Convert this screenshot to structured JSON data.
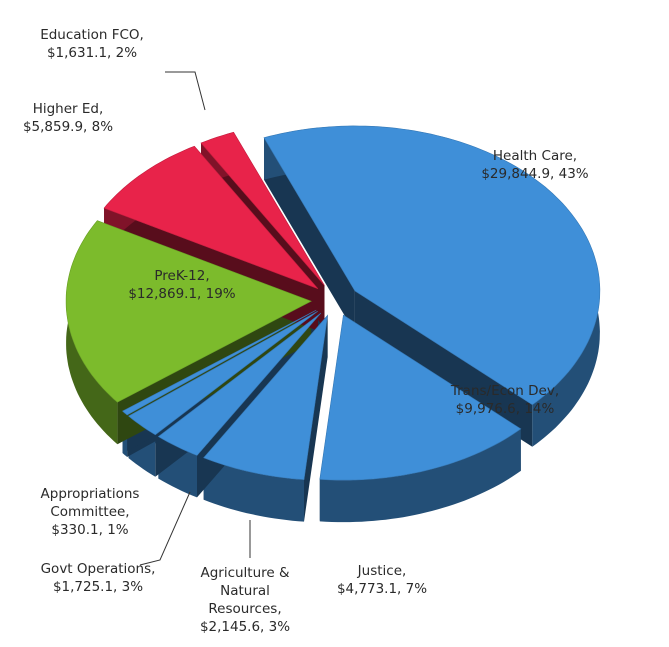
{
  "chart_data": {
    "type": "pie",
    "categories": [
      "Health Care,",
      "Trans/Econ Dev,",
      "Justice,",
      "Agriculture & Natural Resources,",
      "Govt Operations,",
      "Appropriations Committee,",
      "PreK-12,",
      "Higher Ed,",
      "Education FCO,"
    ],
    "values": [
      29844.9,
      9976.6,
      4773.1,
      2145.6,
      1725.1,
      330.1,
      12869.1,
      5859.9,
      1631.1
    ],
    "value_labels": [
      "$29,844.9, 43%",
      "$9,976.6, 14%",
      "$4,773.1, 7%",
      "$2,145.6, 3%",
      "$1,725.1, 3%",
      "$330.1, 1%",
      "$12,869.1, 19%",
      "$5,859.9, 8%",
      "$1,631.1, 2%"
    ],
    "colors": [
      "#3f8fd8",
      "#3f8fd8",
      "#3f8fd8",
      "#3f8fd8",
      "#3f8fd8",
      "#3f8fd8",
      "#7cbb2c",
      "#e8234a",
      "#e8234a"
    ]
  }
}
